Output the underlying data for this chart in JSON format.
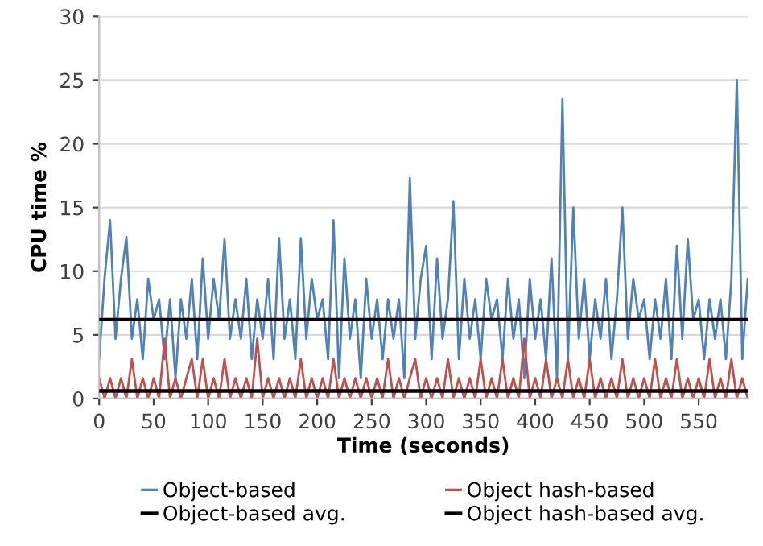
{
  "chart_data": {
    "type": "line",
    "xlabel": "Time (seconds)",
    "ylabel": "CPU time %",
    "x": [
      0,
      5,
      10,
      15,
      20,
      25,
      30,
      35,
      40,
      45,
      50,
      55,
      60,
      65,
      70,
      75,
      80,
      85,
      90,
      95,
      100,
      105,
      110,
      115,
      120,
      125,
      130,
      135,
      140,
      145,
      150,
      155,
      160,
      165,
      170,
      175,
      180,
      185,
      190,
      195,
      200,
      205,
      210,
      215,
      220,
      225,
      230,
      235,
      240,
      245,
      250,
      255,
      260,
      265,
      270,
      275,
      280,
      285,
      290,
      295,
      300,
      305,
      310,
      315,
      320,
      325,
      330,
      335,
      340,
      345,
      350,
      355,
      360,
      365,
      370,
      375,
      380,
      385,
      390,
      395,
      400,
      405,
      410,
      415,
      420,
      425,
      430,
      435,
      440,
      445,
      450,
      455,
      460,
      465,
      470,
      475,
      480,
      485,
      490,
      495,
      500,
      505,
      510,
      515,
      520,
      525,
      530,
      535,
      540,
      545,
      550,
      555,
      560,
      565,
      570,
      575,
      580,
      585,
      590,
      595
    ],
    "series": [
      {
        "name": "Object-based",
        "color": "#4f81bd",
        "values": [
          3.1,
          9.5,
          14,
          4.7,
          9.4,
          12.7,
          4.7,
          7.8,
          3.1,
          9.4,
          6.2,
          7.8,
          3.1,
          7.8,
          1.6,
          7.8,
          4.7,
          9.4,
          3.1,
          11,
          4.7,
          9.4,
          6.2,
          12.5,
          4.7,
          7.8,
          4.7,
          9.4,
          3.1,
          7.8,
          4.7,
          9.4,
          3.1,
          12.6,
          4.7,
          7.8,
          3.1,
          12.6,
          4.7,
          9.4,
          6.2,
          7.8,
          3.1,
          14,
          1.6,
          11,
          4.7,
          7.8,
          1.6,
          9.4,
          4.7,
          7.8,
          3.1,
          7.8,
          4.7,
          7.8,
          1.6,
          17.3,
          4.7,
          9.4,
          12,
          3.1,
          11,
          4.7,
          7.8,
          15.5,
          3.1,
          9.4,
          4.7,
          7.8,
          3.1,
          9.4,
          6.2,
          7.8,
          3.1,
          9.4,
          4.7,
          7.8,
          1.6,
          9.4,
          4.7,
          7.8,
          3.1,
          11,
          1.6,
          23.5,
          3.1,
          15,
          4.7,
          9.4,
          3.1,
          7.8,
          4.7,
          9.4,
          3.1,
          7.8,
          15,
          4.7,
          9.4,
          6.2,
          7.8,
          3.1,
          7.8,
          4.7,
          9.4,
          3.1,
          12,
          4.7,
          12.5,
          6.2,
          7.8,
          3.1,
          7.8,
          4.7,
          7.8,
          3.1,
          9.4,
          25,
          3.1,
          9.4
        ]
      },
      {
        "name": "Object hash-based",
        "color": "#c0504d",
        "values": [
          1.6,
          0,
          1.6,
          0,
          1.6,
          0,
          3.1,
          0,
          1.6,
          0,
          1.6,
          0,
          4.7,
          0,
          1.6,
          0,
          1.6,
          3.1,
          0,
          3.1,
          0,
          1.6,
          0,
          3.1,
          0,
          1.6,
          0,
          1.6,
          0,
          4.7,
          0,
          1.6,
          0,
          1.6,
          0,
          1.6,
          0,
          3.1,
          0,
          1.6,
          0,
          1.6,
          0,
          3.1,
          0,
          1.6,
          0,
          1.6,
          0,
          1.6,
          0,
          1.6,
          0,
          3.1,
          0,
          1.6,
          0,
          1.6,
          3.1,
          0,
          1.6,
          0,
          1.6,
          0,
          3.1,
          0,
          1.6,
          0,
          1.6,
          0,
          3.1,
          0,
          1.6,
          0,
          3.1,
          0,
          1.6,
          0,
          4.7,
          0,
          1.6,
          0,
          3.1,
          0,
          1.6,
          0,
          3.1,
          0,
          1.6,
          0,
          3.1,
          0,
          1.6,
          0,
          1.6,
          0,
          3.1,
          0,
          1.6,
          0,
          1.6,
          0,
          3.1,
          0,
          1.6,
          0,
          3.1,
          0,
          1.6,
          0,
          1.6,
          0,
          3.1,
          0,
          1.6,
          0,
          3.1,
          0,
          1.6,
          0
        ]
      }
    ],
    "ref_lines": [
      {
        "axis": "y",
        "value": 6.2,
        "label": "Object-based avg.",
        "color": "#000000",
        "line_style": "solid"
      },
      {
        "axis": "y",
        "value": 0.6,
        "label": "Object hash-based avg.",
        "color": "#000000",
        "line_style": "solid"
      }
    ],
    "xlim": [
      0,
      595
    ],
    "xticks": [
      0,
      50,
      100,
      150,
      200,
      250,
      300,
      350,
      400,
      450,
      500,
      550
    ],
    "ylim": [
      0,
      30
    ],
    "yticks": [
      0,
      5,
      10,
      15,
      20,
      25,
      30
    ],
    "grid": "y",
    "legend": "bottom",
    "marker": "none",
    "line_style": "solid"
  }
}
